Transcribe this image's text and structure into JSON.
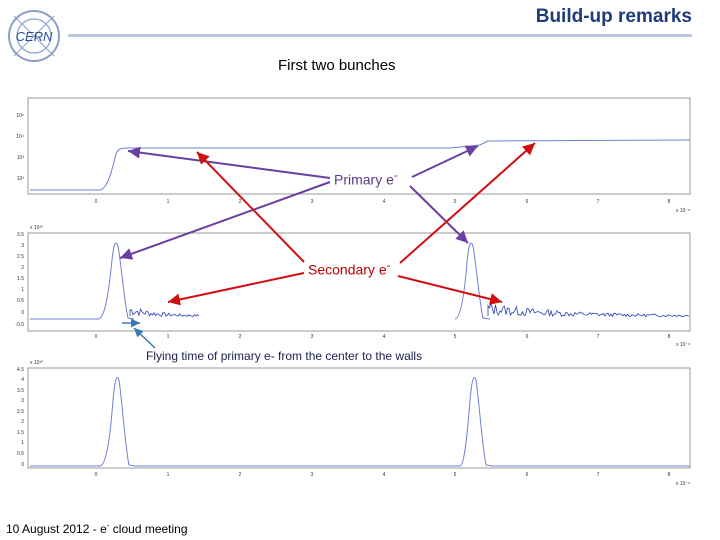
{
  "header": {
    "title": "Build-up remarks",
    "logo_text": "CERN",
    "colors": {
      "title": "#1f3c78",
      "rule": "#b9c7e3"
    }
  },
  "slide": {
    "subtitle": "First two bunches",
    "labels": {
      "primary": "Primary e",
      "primary_sup": "-",
      "secondary": "Secondary e",
      "secondary_sup": "-",
      "flying": "Flying time of primary e- from the center to the walls"
    }
  },
  "plots": {
    "top": {
      "yticks": [
        "10⁵",
        "10⁴",
        "10³",
        "10²"
      ],
      "xticks": [
        "0",
        "1",
        "2",
        "3",
        "4",
        "5",
        "6",
        "7",
        "8"
      ],
      "xscale": "x 10⁻⁸"
    },
    "middle": {
      "yscale": "x 10¹⁰",
      "yticks": [
        "3.5",
        "3",
        "2.5",
        "2",
        "1.5",
        "1",
        "0.5",
        "0",
        "-0.5"
      ],
      "xticks": [
        "0",
        "1",
        "2",
        "3",
        "4",
        "5",
        "6",
        "7",
        "8"
      ],
      "xscale": "x 10⁻⁸"
    },
    "bottom": {
      "yscale": "x 10¹⁰",
      "yticks": [
        "4.5",
        "4",
        "3.5",
        "3",
        "2.5",
        "2",
        "1.5",
        "1",
        "0.5",
        "0"
      ],
      "xticks": [
        "0",
        "1",
        "2",
        "3",
        "4",
        "5",
        "6",
        "7",
        "8"
      ],
      "xscale": "x 10⁻⁸"
    },
    "colors": {
      "curve": "#6f7fd6",
      "noise": "#2b3fb8",
      "primary_arrow": "#6b3fa0",
      "secondary_arrow": "#d01010",
      "flying_arrow": "#3a78b5"
    }
  },
  "footer": {
    "date": "10 August 2012",
    "separator": "-",
    "event_prefix": "e",
    "event_sup": "-",
    "event": " cloud meeting"
  }
}
